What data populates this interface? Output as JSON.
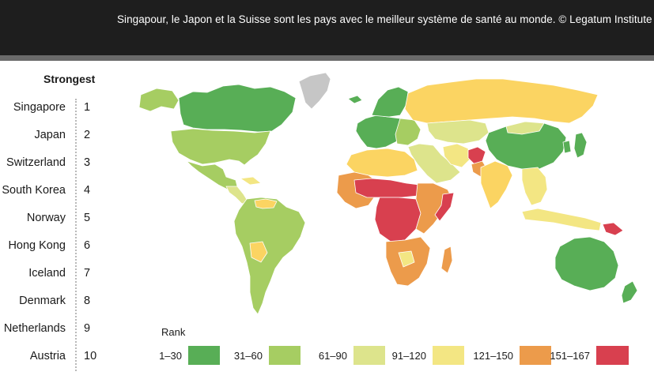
{
  "caption": "Singapour, le Japon et la Suisse sont les pays avec le meilleur système de santé au monde. © Legatum Institute",
  "ranking": {
    "title": "Strongest",
    "items": [
      {
        "rank": "1",
        "country": "Singapore"
      },
      {
        "rank": "2",
        "country": "Japan"
      },
      {
        "rank": "3",
        "country": "Switzerland"
      },
      {
        "rank": "4",
        "country": "South Korea"
      },
      {
        "rank": "5",
        "country": "Norway"
      },
      {
        "rank": "6",
        "country": "Hong Kong"
      },
      {
        "rank": "7",
        "country": "Iceland"
      },
      {
        "rank": "8",
        "country": "Denmark"
      },
      {
        "rank": "9",
        "country": "Netherlands"
      },
      {
        "rank": "10",
        "country": "Austria"
      }
    ]
  },
  "legend": {
    "title": "Rank",
    "items": [
      {
        "label": "1–30",
        "color": "#58ae56"
      },
      {
        "label": "31–60",
        "color": "#a6cd62"
      },
      {
        "label": "61–90",
        "color": "#dde48c"
      },
      {
        "label": "91–120",
        "color": "#f3e683"
      },
      {
        "label": "121–150",
        "color": "#fbd462"
      },
      {
        "label": "151–167",
        "color": "#ec9b4b"
      },
      {
        "label": "",
        "color": "#d8404f"
      }
    ]
  },
  "map_colors": {
    "no_data": "#c6c6c6",
    "border": "#ffffff"
  }
}
